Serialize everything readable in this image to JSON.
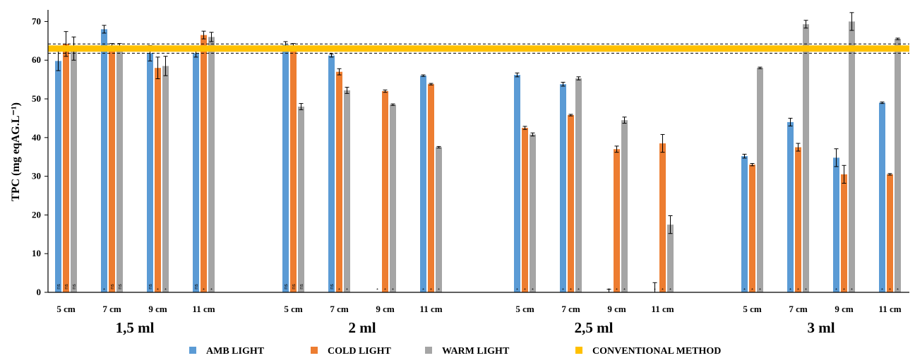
{
  "chart_data": {
    "type": "bar",
    "ylabel": "TPC (mg eqAG.L⁻¹)",
    "ylim": [
      0,
      73
    ],
    "yticks": [
      0,
      10,
      20,
      30,
      40,
      50,
      60,
      70
    ],
    "groups": [
      {
        "label": "1,5 ml",
        "categories": [
          "5 cm",
          "7 cm",
          "9 cm",
          "11 cm"
        ],
        "series": [
          {
            "values": [
              59.8,
              68.0,
              61.8,
              61.8
            ],
            "errors": [
              2.5,
              1.0,
              2.0,
              1.0
            ],
            "marks": [
              "ns",
              "*",
              "ns",
              "ns"
            ]
          },
          {
            "values": [
              64.2,
              63.5,
              58.0,
              66.5
            ],
            "errors": [
              3.2,
              0.8,
              2.8,
              1.0
            ],
            "marks": [
              "ns",
              "ns",
              "*",
              "*"
            ]
          },
          {
            "values": [
              63.0,
              63.5,
              58.5,
              66.0
            ],
            "errors": [
              3.0,
              0.8,
              2.5,
              1.2
            ],
            "marks": [
              "ns",
              "ns",
              "*",
              "*"
            ]
          }
        ]
      },
      {
        "label": "2 ml",
        "categories": [
          "5 cm",
          "7 cm",
          "9 cm",
          "11 cm"
        ],
        "series": [
          {
            "values": [
              64.0,
              61.2,
              0,
              56.0
            ],
            "errors": [
              0.8,
              0.4,
              0,
              0.2
            ],
            "marks": [
              "ns",
              "ns",
              "*",
              "*"
            ]
          },
          {
            "values": [
              63.5,
              57.0,
              52.0,
              53.8
            ],
            "errors": [
              0.8,
              0.8,
              0.3,
              0.2
            ],
            "marks": [
              "ns",
              "*",
              "*",
              "*"
            ]
          },
          {
            "values": [
              48.0,
              52.2,
              48.5,
              37.5
            ],
            "errors": [
              0.8,
              0.8,
              0.2,
              0.2
            ],
            "marks": [
              "ns",
              "*",
              "*",
              "*"
            ]
          }
        ]
      },
      {
        "label": "2,5 ml",
        "categories": [
          "5 cm",
          "7 cm",
          "9 cm",
          "11 cm"
        ],
        "series": [
          {
            "values": [
              56.2,
              53.8,
              0,
              0
            ],
            "errors": [
              0.5,
              0.5,
              0.8,
              2.5
            ],
            "marks": [
              "*",
              "*",
              "*",
              "*"
            ]
          },
          {
            "values": [
              42.5,
              45.8,
              37.0,
              38.5
            ],
            "errors": [
              0.4,
              0.2,
              0.8,
              2.3
            ],
            "marks": [
              "*",
              "*",
              "*",
              "*"
            ]
          },
          {
            "values": [
              40.8,
              55.3,
              44.5,
              17.5
            ],
            "errors": [
              0.4,
              0.4,
              0.8,
              2.3
            ],
            "marks": [
              "*",
              "*",
              "*",
              "*"
            ]
          }
        ]
      },
      {
        "label": "3 ml",
        "categories": [
          "5 cm",
          "7 cm",
          "9 cm",
          "11 cm"
        ],
        "series": [
          {
            "values": [
              35.2,
              44.0,
              34.8,
              49.0
            ],
            "errors": [
              0.5,
              1.0,
              2.3,
              0.2
            ],
            "marks": [
              "*",
              "*",
              "*",
              "*"
            ]
          },
          {
            "values": [
              33.0,
              37.5,
              30.5,
              30.5
            ],
            "errors": [
              0.3,
              1.0,
              2.3,
              0.2
            ],
            "marks": [
              "*",
              "*",
              "*",
              "*"
            ]
          },
          {
            "values": [
              58.0,
              69.3,
              70.0,
              65.5
            ],
            "errors": [
              0.2,
              1.0,
              2.3,
              0.2
            ],
            "marks": [
              "*",
              "*",
              "*",
              "*"
            ]
          }
        ]
      }
    ],
    "reference": {
      "value": 63.0,
      "band": [
        61.8,
        64.2
      ]
    },
    "legend": {
      "placement": "bottom",
      "items": [
        {
          "label": "AMB LIGHT",
          "color": "#5b9bd5"
        },
        {
          "label": "COLD LIGHT",
          "color": "#ed7d31"
        },
        {
          "label": "WARM LIGHT",
          "color": "#a5a5a5"
        },
        {
          "label": "CONVENTIONAL METHOD",
          "color": "#ffc000"
        }
      ]
    }
  }
}
